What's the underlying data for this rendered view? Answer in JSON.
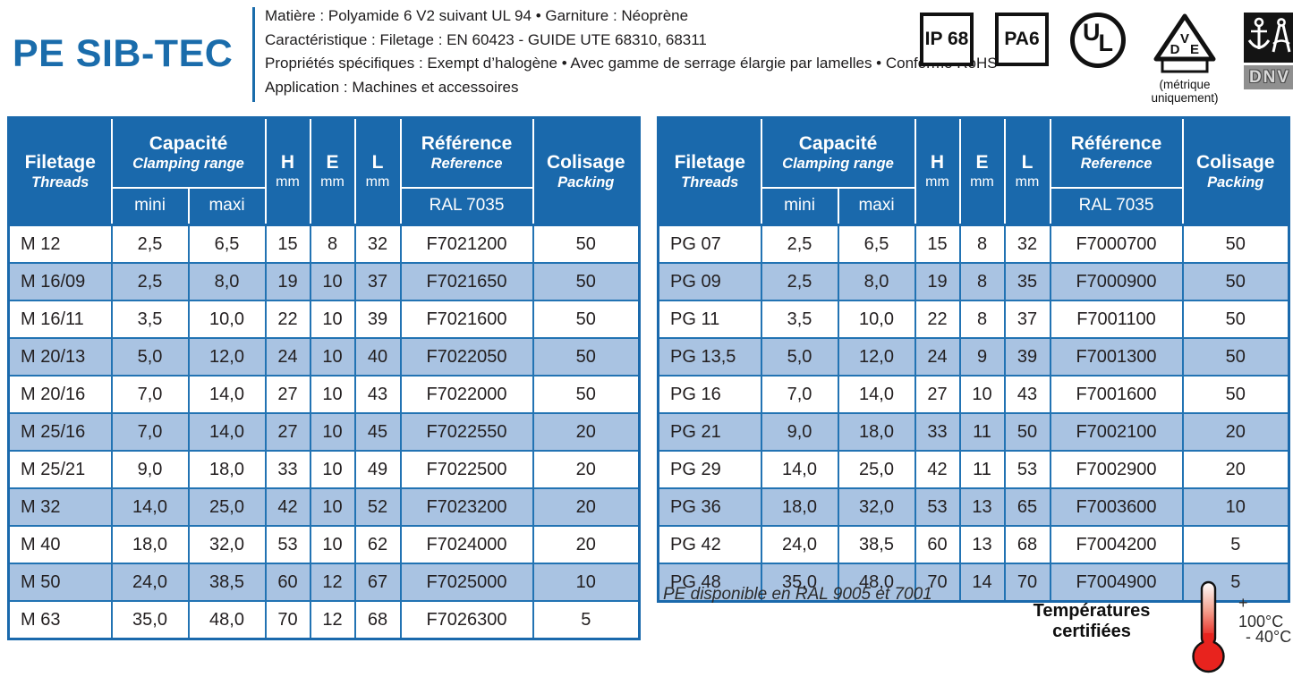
{
  "header": {
    "title": "PE SIB-TEC",
    "info_lines": [
      "Matière : Polyamide 6 V2 suivant UL 94 • Garniture : Néoprène",
      "Caractéristique : Filetage : EN 60423 - GUIDE UTE 68310, 68311",
      "Propriétés spécifiques : Exempt d’halogène • Avec gamme de serrage élargie par lamelles • Conforme RoHS",
      "Application : Machines et accessoires"
    ],
    "badges": {
      "ip68": "IP 68",
      "pa6": "PA6",
      "ul_u": "U",
      "ul_l": "L",
      "vde_d": "D",
      "vde_v": "V",
      "vde_e": "E",
      "vde_caption_1": "(métrique",
      "vde_caption_2": "uniquement)",
      "dnv": "DNV"
    }
  },
  "table_header": {
    "filetage": "Filetage",
    "threads": "Threads",
    "capacite": "Capacité",
    "clamping_range": "Clamping range",
    "mini": "mini",
    "maxi": "maxi",
    "col_h": "H",
    "col_e": "E",
    "col_l": "L",
    "mm": "mm",
    "reference_fr": "Référence",
    "reference_en": "Reference",
    "ral": "RAL 7035",
    "colisage": "Colisage",
    "packing": "Packing"
  },
  "tables": {
    "metric": {
      "rows": [
        [
          "M 12",
          "2,5",
          "6,5",
          "15",
          "8",
          "32",
          "F7021200",
          "50"
        ],
        [
          "M 16/09",
          "2,5",
          "8,0",
          "19",
          "10",
          "37",
          "F7021650",
          "50"
        ],
        [
          "M 16/11",
          "3,5",
          "10,0",
          "22",
          "10",
          "39",
          "F7021600",
          "50"
        ],
        [
          "M 20/13",
          "5,0",
          "12,0",
          "24",
          "10",
          "40",
          "F7022050",
          "50"
        ],
        [
          "M 20/16",
          "7,0",
          "14,0",
          "27",
          "10",
          "43",
          "F7022000",
          "50"
        ],
        [
          "M 25/16",
          "7,0",
          "14,0",
          "27",
          "10",
          "45",
          "F7022550",
          "20"
        ],
        [
          "M 25/21",
          "9,0",
          "18,0",
          "33",
          "10",
          "49",
          "F7022500",
          "20"
        ],
        [
          "M 32",
          "14,0",
          "25,0",
          "42",
          "10",
          "52",
          "F7023200",
          "20"
        ],
        [
          "M 40",
          "18,0",
          "32,0",
          "53",
          "10",
          "62",
          "F7024000",
          "20"
        ],
        [
          "M 50",
          "24,0",
          "38,5",
          "60",
          "12",
          "67",
          "F7025000",
          "10"
        ],
        [
          "M 63",
          "35,0",
          "48,0",
          "70",
          "12",
          "68",
          "F7026300",
          "5"
        ]
      ]
    },
    "pg": {
      "rows": [
        [
          "PG 07",
          "2,5",
          "6,5",
          "15",
          "8",
          "32",
          "F7000700",
          "50"
        ],
        [
          "PG 09",
          "2,5",
          "8,0",
          "19",
          "8",
          "35",
          "F7000900",
          "50"
        ],
        [
          "PG 11",
          "3,5",
          "10,0",
          "22",
          "8",
          "37",
          "F7001100",
          "50"
        ],
        [
          "PG 13,5",
          "5,0",
          "12,0",
          "24",
          "9",
          "39",
          "F7001300",
          "50"
        ],
        [
          "PG 16",
          "7,0",
          "14,0",
          "27",
          "10",
          "43",
          "F7001600",
          "50"
        ],
        [
          "PG 21",
          "9,0",
          "18,0",
          "33",
          "11",
          "50",
          "F7002100",
          "20"
        ],
        [
          "PG 29",
          "14,0",
          "25,0",
          "42",
          "11",
          "53",
          "F7002900",
          "20"
        ],
        [
          "PG 36",
          "18,0",
          "32,0",
          "53",
          "13",
          "65",
          "F7003600",
          "10"
        ],
        [
          "PG 42",
          "24,0",
          "38,5",
          "60",
          "13",
          "68",
          "F7004200",
          "5"
        ],
        [
          "PG 48",
          "35,0",
          "48,0",
          "70",
          "14",
          "70",
          "F7004900",
          "5"
        ]
      ]
    }
  },
  "footer": {
    "availability_note": "PE disponible en RAL 9005 et 7001",
    "temp_title_1": "Températures",
    "temp_title_2": "certifiées",
    "temp_high": "+ 100°C",
    "temp_low": "- 40°C"
  },
  "colors": {
    "header_blue": "#1a69ac",
    "border_blue": "#2273b3",
    "alt_row_blue": "#a9c3e2",
    "title_blue": "#1a6cab",
    "text_dark": "#231f20",
    "thermo_red": "#e8231e"
  }
}
